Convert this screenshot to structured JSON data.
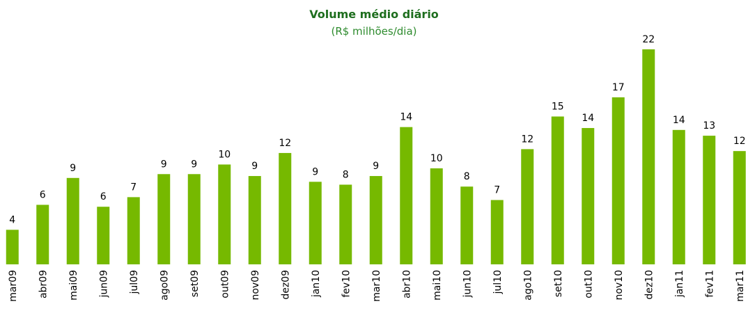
{
  "chart_data": {
    "type": "bar",
    "title": "Volume médio diário",
    "subtitle": "(R$ milhões/dia)",
    "categories": [
      "mar09",
      "abr09",
      "mai09",
      "jun09",
      "jul09",
      "ago09",
      "set09",
      "out09",
      "nov09",
      "dez09",
      "jan10",
      "fev10",
      "mar10",
      "abr10",
      "mai10",
      "jun10",
      "jul10",
      "ago10",
      "set10",
      "out10",
      "nov10",
      "dez10",
      "jan11",
      "fev11",
      "mar11"
    ],
    "values": [
      3.6,
      6.2,
      9.0,
      6.0,
      7.0,
      9.4,
      9.4,
      10.4,
      9.2,
      11.6,
      8.6,
      8.3,
      9.2,
      14.3,
      10.0,
      8.1,
      6.7,
      12.0,
      15.4,
      14.2,
      17.4,
      22.4,
      14.0,
      13.4,
      11.8
    ],
    "value_labels": [
      "4",
      "6",
      "9",
      "6",
      "7",
      "9",
      "9",
      "10",
      "9",
      "12",
      "9",
      "8",
      "9",
      "14",
      "10",
      "8",
      "7",
      "12",
      "15",
      "14",
      "17",
      "22",
      "14",
      "13",
      "12"
    ],
    "color": "#76b900",
    "ylim": [
      0,
      22.5
    ]
  }
}
